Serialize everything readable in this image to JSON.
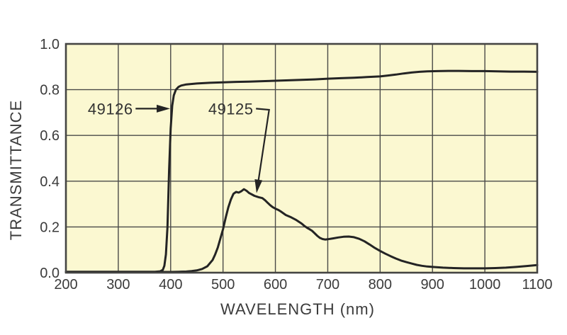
{
  "colors": {
    "page_bg": "#ffffff",
    "plot_bg": "#fbf8d1",
    "grid": "#4a4a48",
    "border": "#454543",
    "curve": "#242424",
    "text": "#3b3b3b"
  },
  "chart_data": {
    "type": "line",
    "title": "",
    "xlabel": "WAVELENGTH (nm)",
    "ylabel": "TRANSMITTANCE",
    "xlim": [
      200,
      1100
    ],
    "ylim": [
      0,
      1
    ],
    "grid": true,
    "legend_position": "none",
    "x_ticks": [
      200,
      300,
      400,
      500,
      600,
      700,
      800,
      900,
      1000,
      1100
    ],
    "x_tick_labels": [
      "200",
      "300",
      "400",
      "500",
      "600",
      "700",
      "800",
      "900",
      "1000",
      "1100"
    ],
    "y_ticks": [
      0,
      0.2,
      0.4,
      0.6,
      0.8,
      1.0
    ],
    "y_tick_labels": [
      "0.0",
      "0.2",
      "0.4",
      "0.6",
      "0.8",
      "1.0"
    ],
    "series": [
      {
        "name": "49126",
        "points": [
          [
            200,
            0.004
          ],
          [
            250,
            0.004
          ],
          [
            300,
            0.004
          ],
          [
            350,
            0.004
          ],
          [
            370,
            0.004
          ],
          [
            380,
            0.006
          ],
          [
            385,
            0.012
          ],
          [
            388,
            0.03
          ],
          [
            391,
            0.08
          ],
          [
            394,
            0.2
          ],
          [
            397,
            0.45
          ],
          [
            400,
            0.63
          ],
          [
            403,
            0.73
          ],
          [
            406,
            0.775
          ],
          [
            410,
            0.8
          ],
          [
            415,
            0.812
          ],
          [
            420,
            0.818
          ],
          [
            430,
            0.823
          ],
          [
            450,
            0.827
          ],
          [
            475,
            0.83
          ],
          [
            500,
            0.832
          ],
          [
            525,
            0.834
          ],
          [
            550,
            0.835
          ],
          [
            575,
            0.837
          ],
          [
            600,
            0.839
          ],
          [
            625,
            0.841
          ],
          [
            650,
            0.843
          ],
          [
            675,
            0.845
          ],
          [
            700,
            0.848
          ],
          [
            725,
            0.85
          ],
          [
            750,
            0.852
          ],
          [
            775,
            0.855
          ],
          [
            800,
            0.858
          ],
          [
            815,
            0.862
          ],
          [
            830,
            0.866
          ],
          [
            845,
            0.871
          ],
          [
            860,
            0.875
          ],
          [
            875,
            0.878
          ],
          [
            890,
            0.88
          ],
          [
            910,
            0.881
          ],
          [
            930,
            0.882
          ],
          [
            950,
            0.882
          ],
          [
            975,
            0.881
          ],
          [
            1000,
            0.881
          ],
          [
            1025,
            0.88
          ],
          [
            1050,
            0.879
          ],
          [
            1075,
            0.879
          ],
          [
            1100,
            0.878
          ]
        ]
      },
      {
        "name": "49125",
        "points": [
          [
            200,
            0.003
          ],
          [
            250,
            0.003
          ],
          [
            300,
            0.003
          ],
          [
            350,
            0.003
          ],
          [
            400,
            0.003
          ],
          [
            415,
            0.004
          ],
          [
            430,
            0.005
          ],
          [
            440,
            0.007
          ],
          [
            450,
            0.01
          ],
          [
            460,
            0.016
          ],
          [
            470,
            0.028
          ],
          [
            480,
            0.055
          ],
          [
            485,
            0.08
          ],
          [
            490,
            0.11
          ],
          [
            495,
            0.15
          ],
          [
            500,
            0.19
          ],
          [
            505,
            0.24
          ],
          [
            510,
            0.285
          ],
          [
            515,
            0.32
          ],
          [
            520,
            0.345
          ],
          [
            525,
            0.353
          ],
          [
            530,
            0.35
          ],
          [
            535,
            0.356
          ],
          [
            540,
            0.365
          ],
          [
            545,
            0.358
          ],
          [
            550,
            0.348
          ],
          [
            555,
            0.342
          ],
          [
            560,
            0.336
          ],
          [
            568,
            0.33
          ],
          [
            575,
            0.326
          ],
          [
            580,
            0.317
          ],
          [
            585,
            0.306
          ],
          [
            590,
            0.295
          ],
          [
            595,
            0.286
          ],
          [
            600,
            0.28
          ],
          [
            605,
            0.275
          ],
          [
            610,
            0.268
          ],
          [
            615,
            0.26
          ],
          [
            620,
            0.252
          ],
          [
            630,
            0.242
          ],
          [
            640,
            0.23
          ],
          [
            650,
            0.215
          ],
          [
            655,
            0.205
          ],
          [
            660,
            0.197
          ],
          [
            665,
            0.19
          ],
          [
            670,
            0.183
          ],
          [
            675,
            0.172
          ],
          [
            680,
            0.161
          ],
          [
            685,
            0.152
          ],
          [
            690,
            0.147
          ],
          [
            695,
            0.145
          ],
          [
            700,
            0.146
          ],
          [
            710,
            0.15
          ],
          [
            720,
            0.154
          ],
          [
            730,
            0.157
          ],
          [
            740,
            0.158
          ],
          [
            750,
            0.155
          ],
          [
            760,
            0.148
          ],
          [
            770,
            0.137
          ],
          [
            780,
            0.123
          ],
          [
            790,
            0.108
          ],
          [
            800,
            0.095
          ],
          [
            810,
            0.083
          ],
          [
            820,
            0.072
          ],
          [
            830,
            0.062
          ],
          [
            840,
            0.053
          ],
          [
            850,
            0.046
          ],
          [
            860,
            0.04
          ],
          [
            870,
            0.034
          ],
          [
            880,
            0.03
          ],
          [
            890,
            0.027
          ],
          [
            900,
            0.025
          ],
          [
            920,
            0.022
          ],
          [
            940,
            0.02
          ],
          [
            960,
            0.019
          ],
          [
            980,
            0.019
          ],
          [
            1000,
            0.019
          ],
          [
            1020,
            0.02
          ],
          [
            1040,
            0.022
          ],
          [
            1060,
            0.025
          ],
          [
            1080,
            0.029
          ],
          [
            1100,
            0.033
          ]
        ]
      }
    ],
    "annotations": [
      {
        "label": "49126",
        "text_end": [
          328,
          0.717
        ],
        "points": [
          [
            333,
            0.717
          ],
          [
            399,
            0.717
          ]
        ]
      },
      {
        "label": "49125",
        "text_end": [
          558,
          0.717
        ],
        "points": [
          [
            563,
            0.717
          ],
          [
            588,
            0.712
          ],
          [
            564,
            0.348
          ]
        ]
      }
    ]
  }
}
